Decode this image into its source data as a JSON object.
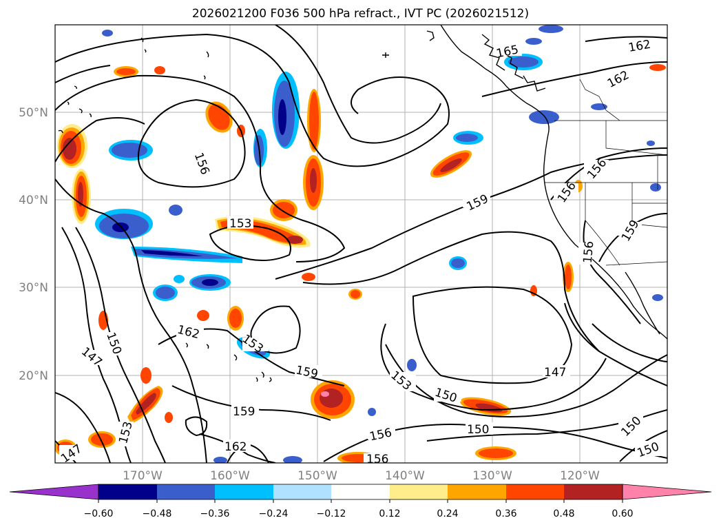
{
  "title": "2026021200 F036 500 hPa refract., IVT PC (2026021512)",
  "map": {
    "lon_labels": [
      "170°W",
      "160°W",
      "150°W",
      "140°W",
      "130°W",
      "120°W"
    ],
    "lat_labels": [
      "50°N",
      "40°N",
      "30°N",
      "20°N"
    ],
    "label_color": "#808080"
  },
  "contour_labels": [
    "156",
    "153",
    "159",
    "165",
    "162",
    "162",
    "156",
    "156",
    "159",
    "156",
    "162",
    "153",
    "159",
    "147",
    "150",
    "153",
    "150",
    "159",
    "147",
    "162",
    "150",
    "156",
    "147",
    "153",
    "150",
    "156",
    "150"
  ],
  "colorbar": {
    "tick_labels": [
      "−0.60",
      "−0.48",
      "−0.36",
      "−0.24",
      "−0.12",
      "0.12",
      "0.24",
      "0.36",
      "0.48",
      "0.60"
    ],
    "colors": [
      "#9932cc",
      "#00008b",
      "#3a5fcd",
      "#00bfff",
      "#b0e2ff",
      "#ffffff",
      "#ffec8b",
      "#ffa500",
      "#ff4500",
      "#b22222",
      "#ff82ab"
    ]
  }
}
